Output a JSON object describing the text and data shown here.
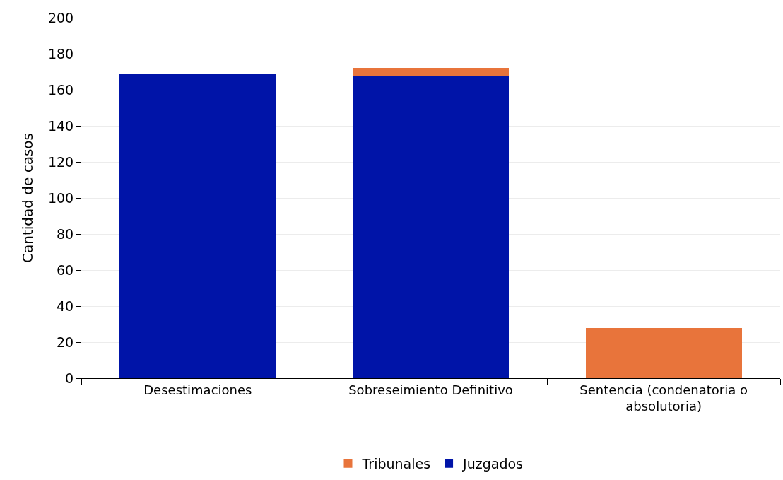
{
  "chart_data": {
    "type": "bar",
    "stacked": true,
    "ylabel": "Cantidad de casos",
    "categories": [
      "Desestimaciones",
      "Sobreseimiento Definitivo",
      "Sentencia (condenatoria o absolutoria)"
    ],
    "series": [
      {
        "name": "Juzgados",
        "color": "#0014a8",
        "values": [
          169,
          168,
          null
        ]
      },
      {
        "name": "Tribunales",
        "color": "#e8743b",
        "values": [
          null,
          4,
          28
        ]
      }
    ],
    "ylim": [
      0,
      200
    ],
    "yticks": [
      0,
      20,
      40,
      60,
      80,
      100,
      120,
      140,
      160,
      180,
      200
    ],
    "grid": "y",
    "legend": "bottom"
  }
}
